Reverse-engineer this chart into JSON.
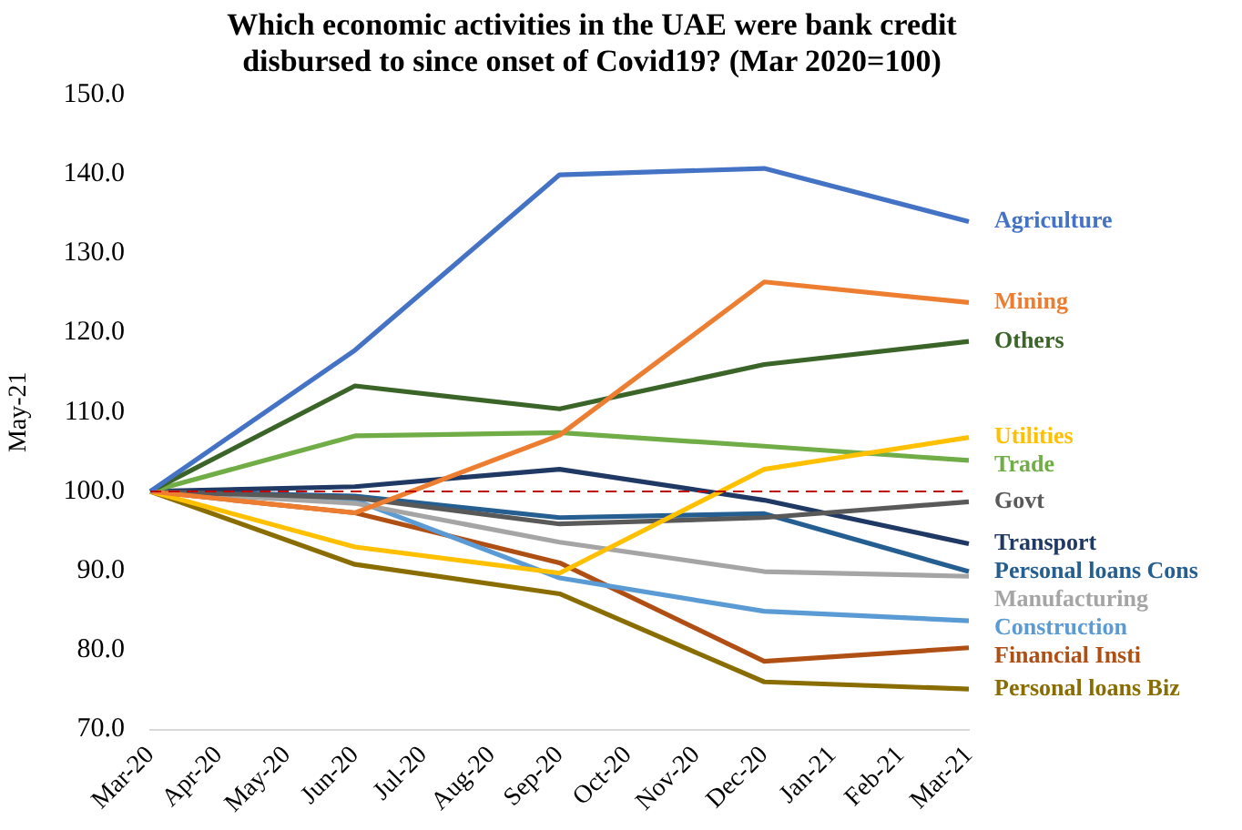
{
  "chart_data": {
    "type": "line",
    "title": "Which economic activities in the UAE were bank credit disbursed to since onset of Covid19? (Mar 2020=100)",
    "ylabel": "May-21",
    "categories": [
      "Mar-20",
      "Apr-20",
      "May-20",
      "Jun-20",
      "Jul-20",
      "Aug-20",
      "Sep-20",
      "Oct-20",
      "Nov-20",
      "Dec-20",
      "Jan-21",
      "Feb-21",
      "Mar-21"
    ],
    "series": [
      {
        "name": "Agriculture",
        "color": "#4472c4",
        "values": [
          100,
          null,
          null,
          117.8,
          null,
          null,
          139.9,
          null,
          null,
          140.7,
          null,
          null,
          134.0
        ]
      },
      {
        "name": "Mining",
        "color": "#ed7d31",
        "values": [
          100,
          null,
          null,
          97.3,
          null,
          null,
          107.1,
          null,
          null,
          126.4,
          null,
          null,
          123.8
        ]
      },
      {
        "name": "Others",
        "color": "#3b6428",
        "values": [
          100,
          null,
          null,
          113.3,
          null,
          null,
          110.4,
          null,
          null,
          116.0,
          null,
          null,
          118.9
        ]
      },
      {
        "name": "Utilities",
        "color": "#ffc000",
        "values": [
          100,
          null,
          null,
          93.0,
          null,
          null,
          89.7,
          null,
          null,
          102.8,
          null,
          null,
          106.8
        ]
      },
      {
        "name": "Trade",
        "color": "#70ad47",
        "values": [
          100,
          null,
          null,
          107.0,
          null,
          null,
          107.4,
          null,
          null,
          105.7,
          null,
          null,
          103.9
        ]
      },
      {
        "name": "Govt",
        "color": "#595959",
        "values": [
          100,
          null,
          null,
          99.2,
          null,
          null,
          95.9,
          null,
          null,
          96.7,
          null,
          null,
          98.7
        ]
      },
      {
        "name": "Transport",
        "color": "#1f3864",
        "values": [
          100,
          null,
          null,
          100.6,
          null,
          null,
          102.8,
          null,
          null,
          98.9,
          null,
          null,
          93.4
        ]
      },
      {
        "name": "Personal loans Cons",
        "color": "#255e91",
        "values": [
          100,
          null,
          null,
          99.4,
          null,
          null,
          96.7,
          null,
          null,
          97.2,
          null,
          null,
          89.9
        ]
      },
      {
        "name": "Manufacturing",
        "color": "#a5a5a5",
        "values": [
          100,
          null,
          null,
          98.5,
          null,
          null,
          93.6,
          null,
          null,
          89.9,
          null,
          null,
          89.3
        ]
      },
      {
        "name": "Construction",
        "color": "#5b9bd5",
        "values": [
          100,
          null,
          null,
          98.9,
          null,
          null,
          89.1,
          null,
          null,
          84.9,
          null,
          null,
          83.7
        ]
      },
      {
        "name": "Financial Insti",
        "color": "#b04f14",
        "values": [
          100,
          null,
          null,
          97.3,
          null,
          null,
          91.0,
          null,
          null,
          78.6,
          null,
          null,
          80.3
        ]
      },
      {
        "name": "Personal loans Biz",
        "color": "#8a6d00",
        "values": [
          100,
          null,
          null,
          90.8,
          null,
          null,
          87.1,
          null,
          null,
          76.0,
          null,
          null,
          75.1
        ]
      }
    ],
    "ylim": [
      70,
      150
    ],
    "yticks": [
      {
        "value": 70,
        "label": "70.0"
      },
      {
        "value": 80,
        "label": "80.0"
      },
      {
        "value": 90,
        "label": "90.0"
      },
      {
        "value": 100,
        "label": "100.0"
      },
      {
        "value": 110,
        "label": "110.0"
      },
      {
        "value": 120,
        "label": "120.0"
      },
      {
        "value": 130,
        "label": "130.0"
      },
      {
        "value": 140,
        "label": "140.0"
      },
      {
        "value": 150,
        "label": "150.0"
      }
    ],
    "ref_lines": [
      {
        "axis": "y",
        "value": 100,
        "color": "#c00000",
        "line_style": "dashed"
      }
    ],
    "grid": false,
    "legend": false,
    "marker": "none",
    "line_style": "solid"
  }
}
